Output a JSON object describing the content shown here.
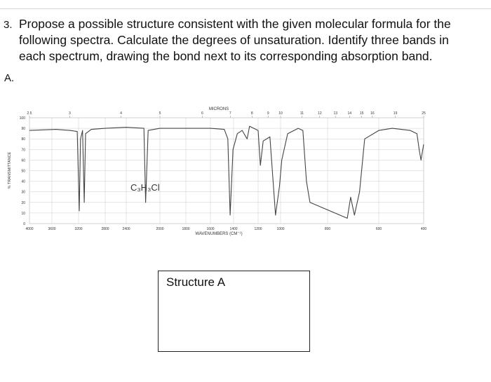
{
  "question": {
    "number": "3.",
    "lines": [
      "Propose a possible structure consistent with the given molecular formula for the",
      "following spectra. Calculate the degrees of unsaturation. Identify three bands in",
      "each spectrum, drawing the bond next to its corresponding absorption band."
    ]
  },
  "part": "A.",
  "chart_data": {
    "type": "line",
    "formula": "C₃H₃Cl",
    "top_axis_label": "MICRONS",
    "x_label": "WAVENUMBERS (CM⁻¹)",
    "y_label": "% TRANSMITTANCE",
    "xlim": [
      4000,
      400
    ],
    "ylim": [
      0,
      100
    ],
    "xticks": [
      4000,
      3600,
      3200,
      2800,
      2400,
      2000,
      1800,
      1600,
      1400,
      1200,
      1000,
      800,
      600,
      400
    ],
    "x2ticks": [
      2.5,
      3,
      4,
      5,
      6,
      7,
      8,
      9,
      10,
      11,
      12,
      13,
      14,
      15,
      16,
      19,
      25
    ],
    "yticks": [
      0,
      10,
      20,
      30,
      40,
      50,
      60,
      70,
      80,
      90,
      100
    ],
    "grid": true,
    "color": "#444444",
    "x": [
      4000,
      3540,
      3330,
      3220,
      3190,
      3170,
      3140,
      3115,
      3095,
      3010,
      2800,
      2400,
      2190,
      2170,
      2140,
      2000,
      1800,
      1600,
      1480,
      1450,
      1430,
      1405,
      1370,
      1330,
      1290,
      1270,
      1200,
      1180,
      1155,
      1095,
      1045,
      1010,
      995,
      970,
      925,
      905,
      890,
      875,
      723,
      710,
      695,
      675,
      655,
      600,
      540,
      460,
      430,
      420,
      412,
      400
    ],
    "values": [
      88,
      89,
      88,
      87,
      12,
      80,
      88,
      20,
      85,
      89,
      90,
      91,
      90,
      20,
      88,
      90,
      90,
      90,
      89,
      80,
      8,
      70,
      85,
      88,
      80,
      92,
      88,
      55,
      78,
      82,
      8,
      35,
      60,
      85,
      90,
      88,
      40,
      20,
      5,
      25,
      8,
      30,
      80,
      88,
      90,
      88,
      85,
      70,
      60,
      75
    ]
  },
  "structure_box": {
    "label": "Structure A"
  }
}
